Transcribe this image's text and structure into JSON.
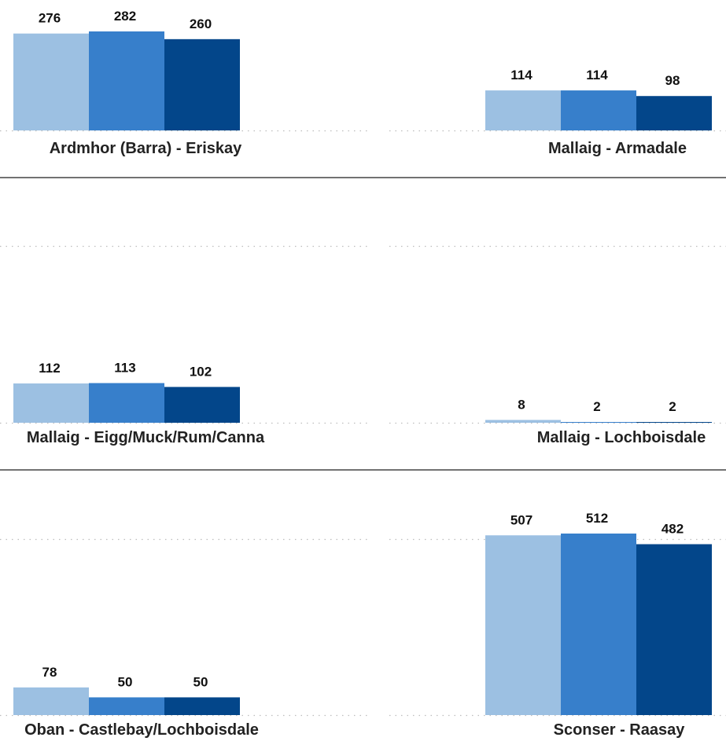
{
  "colors": {
    "series": [
      "#9cc0e2",
      "#377fcb",
      "#03468a"
    ],
    "grid": "#bdbdbd",
    "separator": "#444444"
  },
  "chart_data": [
    {
      "type": "bar",
      "title": "Ardmhor (Barra) - Eriskay",
      "values": [
        276,
        282,
        260
      ],
      "ylim": [
        0,
        282
      ],
      "grid": true
    },
    {
      "type": "bar",
      "title": "Mallaig - Armadale",
      "values": [
        114,
        114,
        98
      ],
      "ylim": [
        0,
        282
      ],
      "grid": true
    },
    {
      "type": "bar",
      "title": "Mallaig - Eigg/Muck/Rum/Canna",
      "values": [
        112,
        113,
        102
      ],
      "ylim": [
        0,
        282
      ],
      "grid": true
    },
    {
      "type": "bar",
      "title": "Mallaig - Lochboisdale",
      "values": [
        8,
        2,
        2
      ],
      "ylim": [
        0,
        282
      ],
      "grid": true
    },
    {
      "type": "bar",
      "title": "Oban - Castlebay/Lochboisdale",
      "values": [
        78,
        50,
        50
      ],
      "ylim": [
        0,
        512
      ],
      "grid": true
    },
    {
      "type": "bar",
      "title": "Sconser - Raasay",
      "values": [
        507,
        512,
        482
      ],
      "ylim": [
        0,
        512
      ],
      "grid": true
    }
  ]
}
